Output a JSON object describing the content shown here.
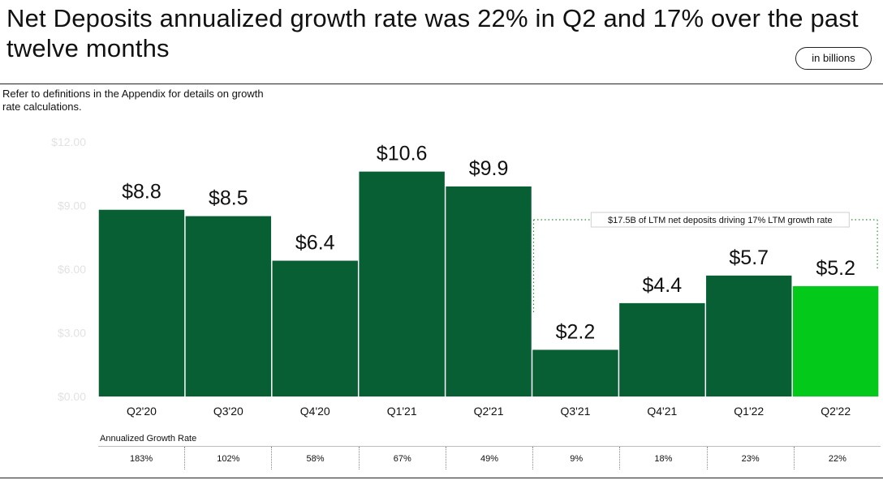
{
  "title": "Net Deposits annualized growth rate was 22% in Q2 and 17% over the past twelve months",
  "unit_badge": "in billions",
  "note": "Refer to definitions in the Appendix for details on growth rate calculations.",
  "chart_data": {
    "type": "bar",
    "categories": [
      "Q2'20",
      "Q3'20",
      "Q4'20",
      "Q1'21",
      "Q2'21",
      "Q3'21",
      "Q4'21",
      "Q1'22",
      "Q2'22"
    ],
    "values": [
      8.8,
      8.5,
      6.4,
      10.6,
      9.9,
      2.2,
      4.4,
      5.7,
      5.2
    ],
    "value_labels": [
      "$8.8",
      "$8.5",
      "$6.4",
      "$10.6",
      "$9.9",
      "$2.2",
      "$4.4",
      "$5.7",
      "$5.2"
    ],
    "y_ticks": [
      "$0.00",
      "$3.00",
      "$6.00",
      "$9.00",
      "$12.00"
    ],
    "y_tick_values": [
      0,
      3,
      6,
      9,
      12
    ],
    "ylim": [
      0,
      12
    ],
    "colors": {
      "bar": "#075f33",
      "highlight": "#03c91b",
      "tick": "#e2e2e2",
      "bracket": "#2e8b3c"
    },
    "highlight_index": 8,
    "annotation": {
      "text": "$17.5B of LTM net deposits driving 17% LTM growth rate",
      "from_index": 5,
      "to_index": 8
    }
  },
  "growth": {
    "label": "Annualized Growth Rate",
    "values": [
      "183%",
      "102%",
      "58%",
      "67%",
      "49%",
      "9%",
      "18%",
      "23%",
      "22%"
    ]
  }
}
